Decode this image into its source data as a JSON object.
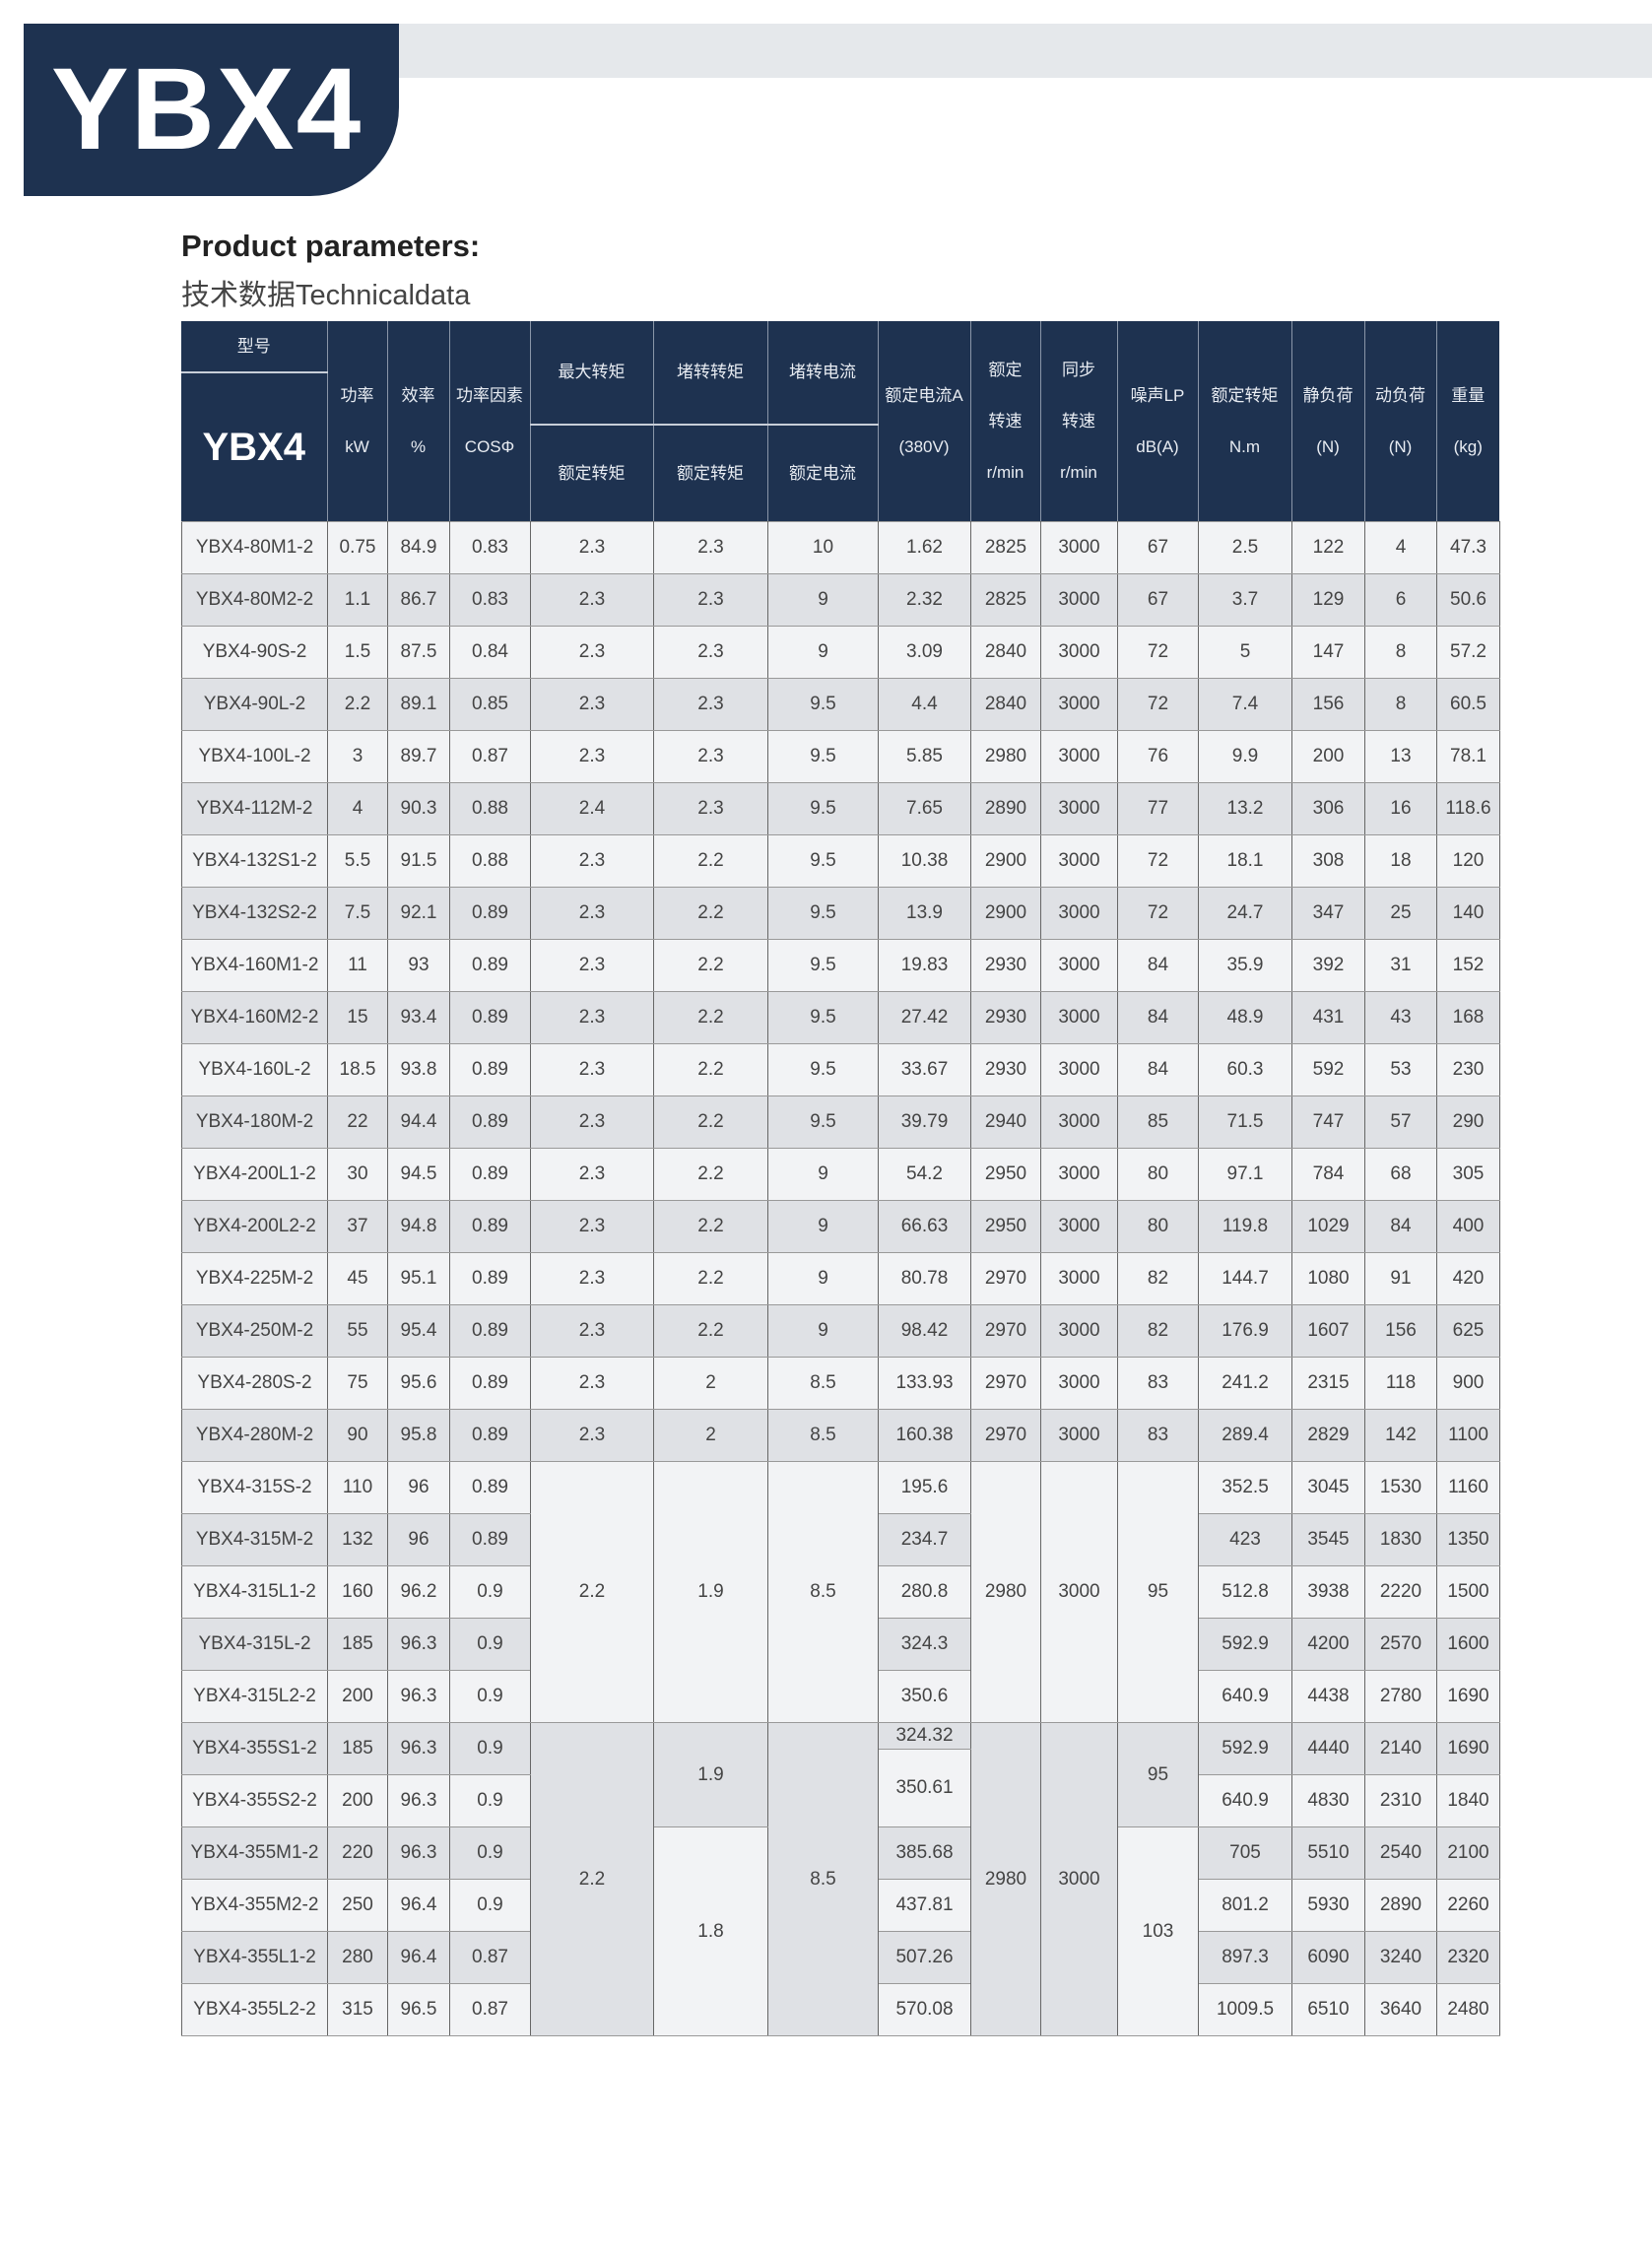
{
  "brand": "YBX4",
  "heading": "Product parameters:",
  "subheading": "技术数据Technicaldata",
  "colors": {
    "navy": "#1e3250",
    "light_row": "#f2f3f5",
    "dark_row": "#dfe1e5"
  },
  "header": {
    "model_top": "型号",
    "model_bottom": "YBX4",
    "power": [
      "功率",
      "kW"
    ],
    "efficiency": [
      "效率",
      "%"
    ],
    "pf": [
      "功率因素",
      "COSΦ"
    ],
    "max_torque": [
      "最大转矩",
      "额定转矩"
    ],
    "locked_torque": [
      "堵转转矩",
      "额定转矩"
    ],
    "locked_current": [
      "堵转电流",
      "额定电流"
    ],
    "current": [
      "额定电流A",
      "(380V)"
    ],
    "speed": [
      "额定",
      "转速",
      "r/min"
    ],
    "sync": [
      "同步",
      "转速",
      "r/min"
    ],
    "noise": [
      "噪声LP",
      "dB(A)"
    ],
    "torque": [
      "额定转矩",
      "N.m"
    ],
    "static": [
      "静负荷",
      "(N)"
    ],
    "dynamic": [
      "动负荷",
      "(N)"
    ],
    "weight": [
      "重量",
      "(kg)"
    ]
  },
  "rows": [
    [
      "YBX4-80M1-2",
      "0.75",
      "84.9",
      "0.83",
      "2.3",
      "2.3",
      "10",
      "1.62",
      "2825",
      "3000",
      "67",
      "2.5",
      "122",
      "4",
      "47.3"
    ],
    [
      "YBX4-80M2-2",
      "1.1",
      "86.7",
      "0.83",
      "2.3",
      "2.3",
      "9",
      "2.32",
      "2825",
      "3000",
      "67",
      "3.7",
      "129",
      "6",
      "50.6"
    ],
    [
      "YBX4-90S-2",
      "1.5",
      "87.5",
      "0.84",
      "2.3",
      "2.3",
      "9",
      "3.09",
      "2840",
      "3000",
      "72",
      "5",
      "147",
      "8",
      "57.2"
    ],
    [
      "YBX4-90L-2",
      "2.2",
      "89.1",
      "0.85",
      "2.3",
      "2.3",
      "9.5",
      "4.4",
      "2840",
      "3000",
      "72",
      "7.4",
      "156",
      "8",
      "60.5"
    ],
    [
      "YBX4-100L-2",
      "3",
      "89.7",
      "0.87",
      "2.3",
      "2.3",
      "9.5",
      "5.85",
      "2980",
      "3000",
      "76",
      "9.9",
      "200",
      "13",
      "78.1"
    ],
    [
      "YBX4-112M-2",
      "4",
      "90.3",
      "0.88",
      "2.4",
      "2.3",
      "9.5",
      "7.65",
      "2890",
      "3000",
      "77",
      "13.2",
      "306",
      "16",
      "118.6"
    ],
    [
      "YBX4-132S1-2",
      "5.5",
      "91.5",
      "0.88",
      "2.3",
      "2.2",
      "9.5",
      "10.38",
      "2900",
      "3000",
      "72",
      "18.1",
      "308",
      "18",
      "120"
    ],
    [
      "YBX4-132S2-2",
      "7.5",
      "92.1",
      "0.89",
      "2.3",
      "2.2",
      "9.5",
      "13.9",
      "2900",
      "3000",
      "72",
      "24.7",
      "347",
      "25",
      "140"
    ],
    [
      "YBX4-160M1-2",
      "11",
      "93",
      "0.89",
      "2.3",
      "2.2",
      "9.5",
      "19.83",
      "2930",
      "3000",
      "84",
      "35.9",
      "392",
      "31",
      "152"
    ],
    [
      "YBX4-160M2-2",
      "15",
      "93.4",
      "0.89",
      "2.3",
      "2.2",
      "9.5",
      "27.42",
      "2930",
      "3000",
      "84",
      "48.9",
      "431",
      "43",
      "168"
    ],
    [
      "YBX4-160L-2",
      "18.5",
      "93.8",
      "0.89",
      "2.3",
      "2.2",
      "9.5",
      "33.67",
      "2930",
      "3000",
      "84",
      "60.3",
      "592",
      "53",
      "230"
    ],
    [
      "YBX4-180M-2",
      "22",
      "94.4",
      "0.89",
      "2.3",
      "2.2",
      "9.5",
      "39.79",
      "2940",
      "3000",
      "85",
      "71.5",
      "747",
      "57",
      "290"
    ],
    [
      "YBX4-200L1-2",
      "30",
      "94.5",
      "0.89",
      "2.3",
      "2.2",
      "9",
      "54.2",
      "2950",
      "3000",
      "80",
      "97.1",
      "784",
      "68",
      "305"
    ],
    [
      "YBX4-200L2-2",
      "37",
      "94.8",
      "0.89",
      "2.3",
      "2.2",
      "9",
      "66.63",
      "2950",
      "3000",
      "80",
      "119.8",
      "1029",
      "84",
      "400"
    ],
    [
      "YBX4-225M-2",
      "45",
      "95.1",
      "0.89",
      "2.3",
      "2.2",
      "9",
      "80.78",
      "2970",
      "3000",
      "82",
      "144.7",
      "1080",
      "91",
      "420"
    ],
    [
      "YBX4-250M-2",
      "55",
      "95.4",
      "0.89",
      "2.3",
      "2.2",
      "9",
      "98.42",
      "2970",
      "3000",
      "82",
      "176.9",
      "1607",
      "156",
      "625"
    ],
    [
      "YBX4-280S-2",
      "75",
      "95.6",
      "0.89",
      "2.3",
      "2",
      "8.5",
      "133.93",
      "2970",
      "3000",
      "83",
      "241.2",
      "2315",
      "118",
      "900"
    ],
    [
      "YBX4-280M-2",
      "90",
      "95.8",
      "0.89",
      "2.3",
      "2",
      "8.5",
      "160.38",
      "2970",
      "3000",
      "83",
      "289.4",
      "2829",
      "142",
      "1100"
    ]
  ],
  "group_315": {
    "shared": {
      "max_torque": "2.2",
      "locked_torque": "1.9",
      "locked_current": "8.5",
      "speed": "2980",
      "sync": "3000",
      "noise": "95"
    },
    "rows": [
      {
        "model": "YBX4-315S-2",
        "power": "110",
        "eff": "96",
        "pf": "0.89",
        "current": "195.6",
        "torque": "352.5",
        "static": "3045",
        "dynamic": "1530",
        "weight": "1160"
      },
      {
        "model": "YBX4-315M-2",
        "power": "132",
        "eff": "96",
        "pf": "0.89",
        "current": "234.7",
        "torque": "423",
        "static": "3545",
        "dynamic": "1830",
        "weight": "1350"
      },
      {
        "model": "YBX4-315L1-2",
        "power": "160",
        "eff": "96.2",
        "pf": "0.9",
        "current": "280.8",
        "torque": "512.8",
        "static": "3938",
        "dynamic": "2220",
        "weight": "1500"
      },
      {
        "model": "YBX4-315L-2",
        "power": "185",
        "eff": "96.3",
        "pf": "0.9",
        "current": "324.3",
        "torque": "592.9",
        "static": "4200",
        "dynamic": "2570",
        "weight": "1600"
      },
      {
        "model": "YBX4-315L2-2",
        "power": "200",
        "eff": "96.3",
        "pf": "0.9",
        "current": "350.6",
        "torque": "640.9",
        "static": "4438",
        "dynamic": "2780",
        "weight": "1690"
      }
    ]
  },
  "group_355": {
    "shared": {
      "max_torque": "2.2",
      "locked_torque_a": "1.9",
      "locked_torque_b": "1.8",
      "locked_current": "8.5",
      "speed": "2980",
      "sync": "3000",
      "noise_a": "95",
      "noise_b": "103"
    },
    "currents": [
      "324.32",
      "350.61",
      "385.68",
      "437.81",
      "507.26",
      "570.08"
    ],
    "rows": [
      {
        "model": "YBX4-355S1-2",
        "power": "185",
        "eff": "96.3",
        "pf": "0.9",
        "torque": "592.9",
        "static": "4440",
        "dynamic": "2140",
        "weight": "1690"
      },
      {
        "model": "YBX4-355S2-2",
        "power": "200",
        "eff": "96.3",
        "pf": "0.9",
        "torque": "640.9",
        "static": "4830",
        "dynamic": "2310",
        "weight": "1840"
      },
      {
        "model": "YBX4-355M1-2",
        "power": "220",
        "eff": "96.3",
        "pf": "0.9",
        "torque": "705",
        "static": "5510",
        "dynamic": "2540",
        "weight": "2100"
      },
      {
        "model": "YBX4-355M2-2",
        "power": "250",
        "eff": "96.4",
        "pf": "0.9",
        "torque": "801.2",
        "static": "5930",
        "dynamic": "2890",
        "weight": "2260"
      },
      {
        "model": "YBX4-355L1-2",
        "power": "280",
        "eff": "96.4",
        "pf": "0.87",
        "torque": "897.3",
        "static": "6090",
        "dynamic": "3240",
        "weight": "2320"
      },
      {
        "model": "YBX4-355L2-2",
        "power": "315",
        "eff": "96.5",
        "pf": "0.87",
        "torque": "1009.5",
        "static": "6510",
        "dynamic": "3640",
        "weight": "2480"
      }
    ]
  }
}
